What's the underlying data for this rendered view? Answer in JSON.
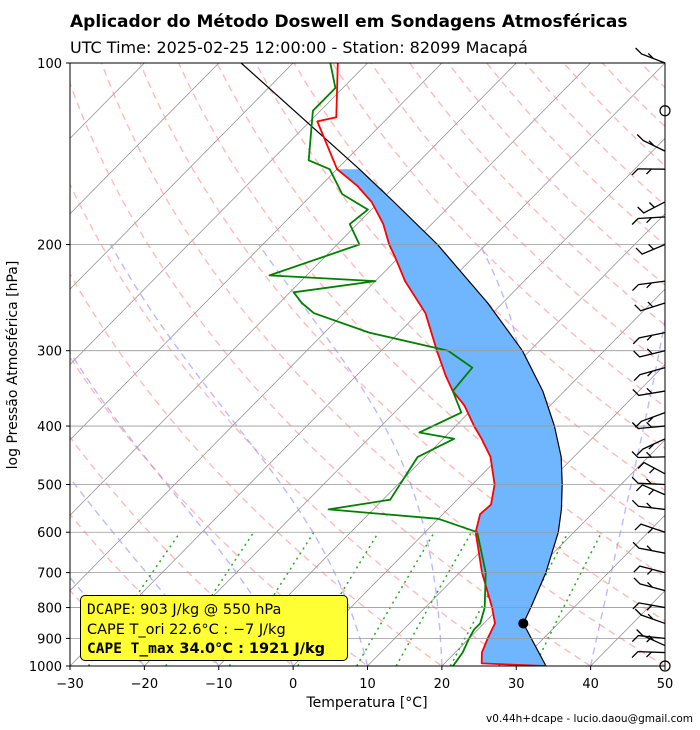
{
  "title": "Aplicador do Método Doswell em Sondagens Atmosféricas",
  "subtitle": "UTC Time: 2025-02-25 12:00:00 - Station: 82099 Macapá",
  "footer": "v0.44h+dcape  -  lucio.daou@gmail.com",
  "infobox": {
    "line1_label": "DCAPE",
    "line1_value": ":  903 J/kg @ 550 hPa",
    "line2_label": "CAPE T_ori",
    "line2_value": " 22.6°C :  −7 J/kg",
    "line3_label": "CAPE T_max",
    "line3_value": " 34.0°C : 1921 J/kg"
  },
  "colors": {
    "temperature": "#ff0000",
    "dewpoint": "#008000",
    "parcel": "#000000",
    "cape_fill": "#6fb6ff",
    "dry_adiabats": "#ff8c8c",
    "moist_adiabats": "#8c8cff",
    "mixing_ratio": "#22aa22",
    "isotherms": "#888888",
    "infobox_bg": "#ffff33"
  },
  "chart_data": {
    "type": "skew-t log-p sounding",
    "xlabel": "Temperatura [°C]",
    "ylabel": "log Pressão Atmosférica [hPa]",
    "xlim": [
      -30,
      50
    ],
    "ylim": [
      1000,
      100
    ],
    "y_scale": "log",
    "x_ticks": [
      -30,
      -20,
      -10,
      0,
      10,
      20,
      30,
      40,
      50
    ],
    "y_ticks": [
      1000,
      900,
      800,
      700,
      600,
      500,
      400,
      300,
      200,
      100
    ],
    "grid": true,
    "temperature_profile": [
      {
        "p": 1000,
        "t": 34.0
      },
      {
        "p": 990,
        "t": 25.0
      },
      {
        "p": 950,
        "t": 23.6
      },
      {
        "p": 900,
        "t": 22.5
      },
      {
        "p": 850,
        "t": 21.5
      },
      {
        "p": 800,
        "t": 19.0
      },
      {
        "p": 700,
        "t": 13.0
      },
      {
        "p": 600,
        "t": 6.8
      },
      {
        "p": 560,
        "t": 5.0
      },
      {
        "p": 540,
        "t": 5.2
      },
      {
        "p": 500,
        "t": 3.0
      },
      {
        "p": 450,
        "t": -1.2
      },
      {
        "p": 420,
        "t": -4.8
      },
      {
        "p": 400,
        "t": -7.5
      },
      {
        "p": 370,
        "t": -11.5
      },
      {
        "p": 350,
        "t": -15.0
      },
      {
        "p": 330,
        "t": -18.0
      },
      {
        "p": 300,
        "t": -22.5
      },
      {
        "p": 260,
        "t": -29.0
      },
      {
        "p": 230,
        "t": -36.0
      },
      {
        "p": 210,
        "t": -40.5
      },
      {
        "p": 200,
        "t": -43.0
      },
      {
        "p": 185,
        "t": -46.5
      },
      {
        "p": 170,
        "t": -51.0
      },
      {
        "p": 160,
        "t": -55.0
      },
      {
        "p": 150,
        "t": -60.0
      },
      {
        "p": 125,
        "t": -69.0
      },
      {
        "p": 123,
        "t": -67.0
      },
      {
        "p": 100,
        "t": -74.0
      }
    ],
    "dewpoint_profile": [
      {
        "p": 1000,
        "td": 21.5
      },
      {
        "p": 950,
        "td": 21.0
      },
      {
        "p": 900,
        "td": 20.0
      },
      {
        "p": 870,
        "td": 19.5
      },
      {
        "p": 850,
        "td": 19.5
      },
      {
        "p": 800,
        "td": 18.0
      },
      {
        "p": 700,
        "td": 13.5
      },
      {
        "p": 600,
        "td": 7.0
      },
      {
        "p": 570,
        "td": 0.0
      },
      {
        "p": 550,
        "td": -16.0
      },
      {
        "p": 530,
        "td": -9.0
      },
      {
        "p": 450,
        "td": -11.0
      },
      {
        "p": 420,
        "td": -8.5
      },
      {
        "p": 410,
        "td": -14.0
      },
      {
        "p": 380,
        "td": -11.0
      },
      {
        "p": 350,
        "td": -15.0
      },
      {
        "p": 320,
        "td": -15.5
      },
      {
        "p": 300,
        "td": -21.0
      },
      {
        "p": 280,
        "td": -34.0
      },
      {
        "p": 260,
        "td": -44.0
      },
      {
        "p": 250,
        "td": -47.0
      },
      {
        "p": 240,
        "td": -49.5
      },
      {
        "p": 230,
        "td": -40.0
      },
      {
        "p": 225,
        "td": -55.0
      },
      {
        "p": 200,
        "td": -47.0
      },
      {
        "p": 185,
        "td": -51.0
      },
      {
        "p": 175,
        "td": -50.5
      },
      {
        "p": 165,
        "td": -56.0
      },
      {
        "p": 150,
        "td": -61.0
      },
      {
        "p": 145,
        "td": -65.0
      },
      {
        "p": 120,
        "td": -71.0
      },
      {
        "p": 110,
        "td": -71.0
      },
      {
        "p": 100,
        "td": -75.0
      }
    ],
    "parcel_profile": [
      {
        "p": 1000,
        "t": 34.0
      },
      {
        "p": 850,
        "t": 25.3
      },
      {
        "p": 800,
        "t": 24.2
      },
      {
        "p": 700,
        "t": 21.6
      },
      {
        "p": 600,
        "t": 17.9
      },
      {
        "p": 550,
        "t": 15.3
      },
      {
        "p": 500,
        "t": 12.1
      },
      {
        "p": 450,
        "t": 8.3
      },
      {
        "p": 400,
        "t": 3.3
      },
      {
        "p": 350,
        "t": -2.9
      },
      {
        "p": 300,
        "t": -11.0
      },
      {
        "p": 250,
        "t": -22.0
      },
      {
        "p": 200,
        "t": -36.5
      },
      {
        "p": 170,
        "t": -48.0
      },
      {
        "p": 150,
        "t": -57.0
      },
      {
        "p": 100,
        "t": -87.0
      }
    ],
    "lcl": {
      "p": 850,
      "t": 25.3
    },
    "wind_barb_levels_hpa": [
      1000,
      950,
      925,
      900,
      850,
      800,
      750,
      700,
      650,
      600,
      550,
      520,
      500,
      480,
      450,
      420,
      400,
      380,
      350,
      320,
      300,
      280,
      250,
      230,
      200,
      180,
      170,
      150,
      140,
      120,
      100
    ]
  }
}
